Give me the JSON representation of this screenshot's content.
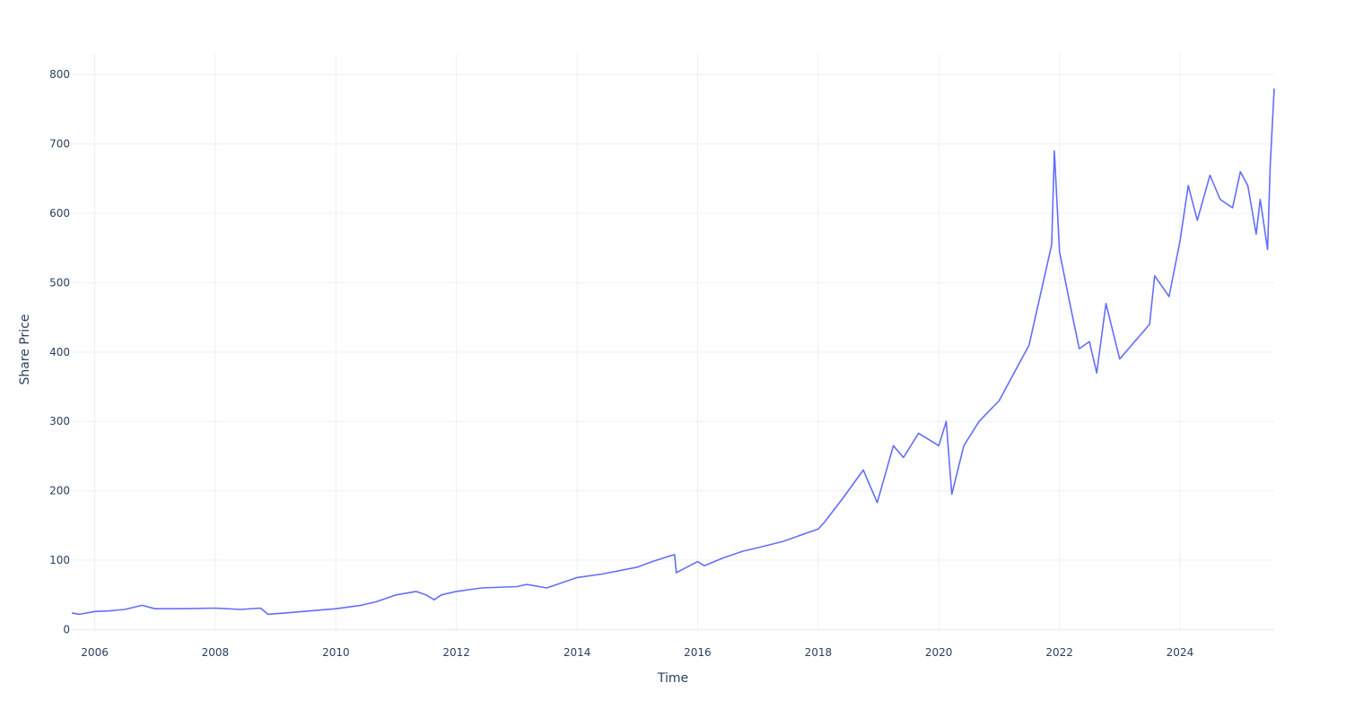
{
  "chart_data": {
    "type": "line",
    "xlabel": "Time",
    "ylabel": "Share Price",
    "x_axis_type": "date",
    "xlim": [
      "2005-08-15",
      "2025-07-25"
    ],
    "ylim": [
      -2,
      830
    ],
    "x_ticks": [
      "2006",
      "2008",
      "2010",
      "2012",
      "2014",
      "2016",
      "2018",
      "2020",
      "2022",
      "2024"
    ],
    "y_ticks": [
      0,
      100,
      200,
      300,
      400,
      500,
      600,
      700,
      800
    ],
    "grid": true,
    "legend": "none",
    "line_color": "#636efa",
    "grid_color": "#ebf0f8",
    "tick_color": "#2a3f5f",
    "series": [
      {
        "x": [
          "2005-08-15",
          "2005-10-01",
          "2006-01-01",
          "2006-04-01",
          "2006-07-01",
          "2006-10-15",
          "2007-01-01",
          "2007-06-01",
          "2008-01-01",
          "2008-06-01",
          "2008-10-01",
          "2008-11-15",
          "2009-03-01",
          "2009-08-01",
          "2010-01-01",
          "2010-06-01",
          "2010-09-01",
          "2011-01-01",
          "2011-05-01",
          "2011-07-01",
          "2011-08-20",
          "2011-10-01",
          "2012-01-01",
          "2012-06-01",
          "2013-01-01",
          "2013-03-01",
          "2013-07-01",
          "2014-01-01",
          "2014-06-01",
          "2015-01-01",
          "2015-04-01",
          "2015-07-01",
          "2015-08-15",
          "2015-08-25",
          "2016-01-01",
          "2016-02-10",
          "2016-06-01",
          "2016-10-01",
          "2017-01-01",
          "2017-06-01",
          "2018-01-01",
          "2018-02-08",
          "2018-06-01",
          "2018-10-01",
          "2018-12-24",
          "2019-04-01",
          "2019-06-01",
          "2019-09-01",
          "2020-01-01",
          "2020-02-15",
          "2020-03-20",
          "2020-06-01",
          "2020-09-01",
          "2021-01-01",
          "2021-04-01",
          "2021-07-01",
          "2021-11-15",
          "2021-12-01",
          "2022-01-01",
          "2022-03-01",
          "2022-05-01",
          "2022-07-01",
          "2022-08-15",
          "2022-10-10",
          "2023-01-01",
          "2023-04-01",
          "2023-07-01",
          "2023-08-01",
          "2023-10-27",
          "2024-01-01",
          "2024-02-20",
          "2024-04-15",
          "2024-07-01",
          "2024-09-01",
          "2024-11-15",
          "2025-01-01",
          "2025-02-15",
          "2025-04-07",
          "2025-05-01",
          "2025-06-15",
          "2025-07-01",
          "2025-07-25"
        ],
        "y": [
          24,
          22,
          26,
          27,
          29,
          35,
          30,
          30,
          31,
          29,
          31,
          22,
          24,
          27,
          30,
          35,
          40,
          50,
          55,
          50,
          43,
          50,
          55,
          60,
          62,
          65,
          60,
          75,
          80,
          90,
          98,
          105,
          108,
          82,
          98,
          92,
          103,
          113,
          118,
          127,
          145,
          155,
          190,
          230,
          183,
          265,
          248,
          283,
          265,
          300,
          195,
          265,
          300,
          330,
          370,
          410,
          555,
          690,
          545,
          475,
          405,
          415,
          370,
          470,
          390,
          415,
          440,
          510,
          480,
          560,
          640,
          590,
          655,
          620,
          608,
          660,
          640,
          570,
          620,
          548,
          670,
          780
        ]
      }
    ]
  }
}
